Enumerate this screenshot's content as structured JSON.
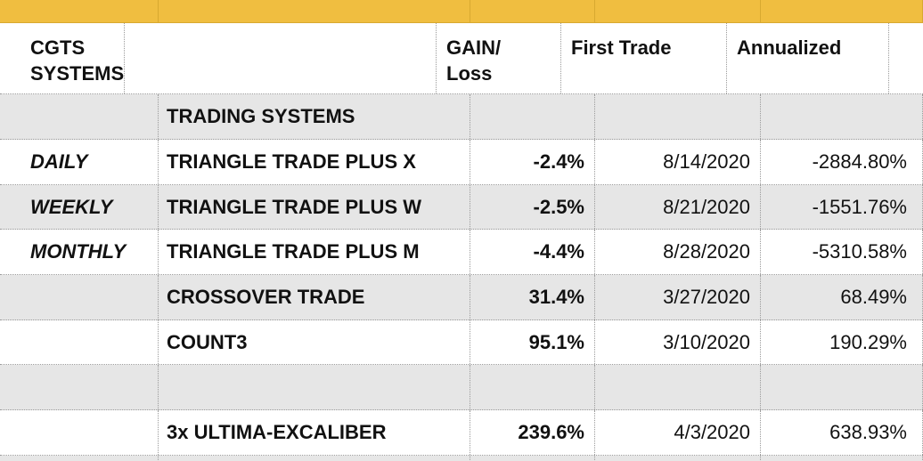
{
  "header": {
    "col0": [
      "CGTS",
      "SYSTEMS"
    ],
    "col1": "",
    "col2": [
      "GAIN/",
      "Loss"
    ],
    "col3": "First Trade",
    "col4": "Annualized"
  },
  "section_label": "TRADING SYSTEMS",
  "rows": [
    {
      "period": "DAILY",
      "system": "TRIANGLE TRADE PLUS X",
      "gain": "-2.4%",
      "first_trade": "8/14/2020",
      "annualized": "-2884.80%"
    },
    {
      "period": "WEEKLY",
      "system": "TRIANGLE TRADE PLUS W",
      "gain": "-2.5%",
      "first_trade": "8/21/2020",
      "annualized": "-1551.76%"
    },
    {
      "period": "MONTHLY",
      "system": "TRIANGLE TRADE PLUS M",
      "gain": "-4.4%",
      "first_trade": "8/28/2020",
      "annualized": "-5310.58%"
    },
    {
      "period": "",
      "system": "CROSSOVER TRADE",
      "gain": "31.4%",
      "first_trade": "3/27/2020",
      "annualized": "68.49%"
    },
    {
      "period": "",
      "system": "COUNT3",
      "gain": "95.1%",
      "first_trade": "3/10/2020",
      "annualized": "190.29%"
    },
    {
      "period": "",
      "system": "",
      "gain": "",
      "first_trade": "",
      "annualized": ""
    },
    {
      "period": "",
      "system": "3x ULTIMA-EXCALIBER",
      "gain": "239.6%",
      "first_trade": "4/3/2020",
      "annualized": "638.93%"
    }
  ],
  "colors": {
    "topbar": "#f0be40",
    "gray_row": "#e6e6e6",
    "white_row": "#ffffff"
  }
}
